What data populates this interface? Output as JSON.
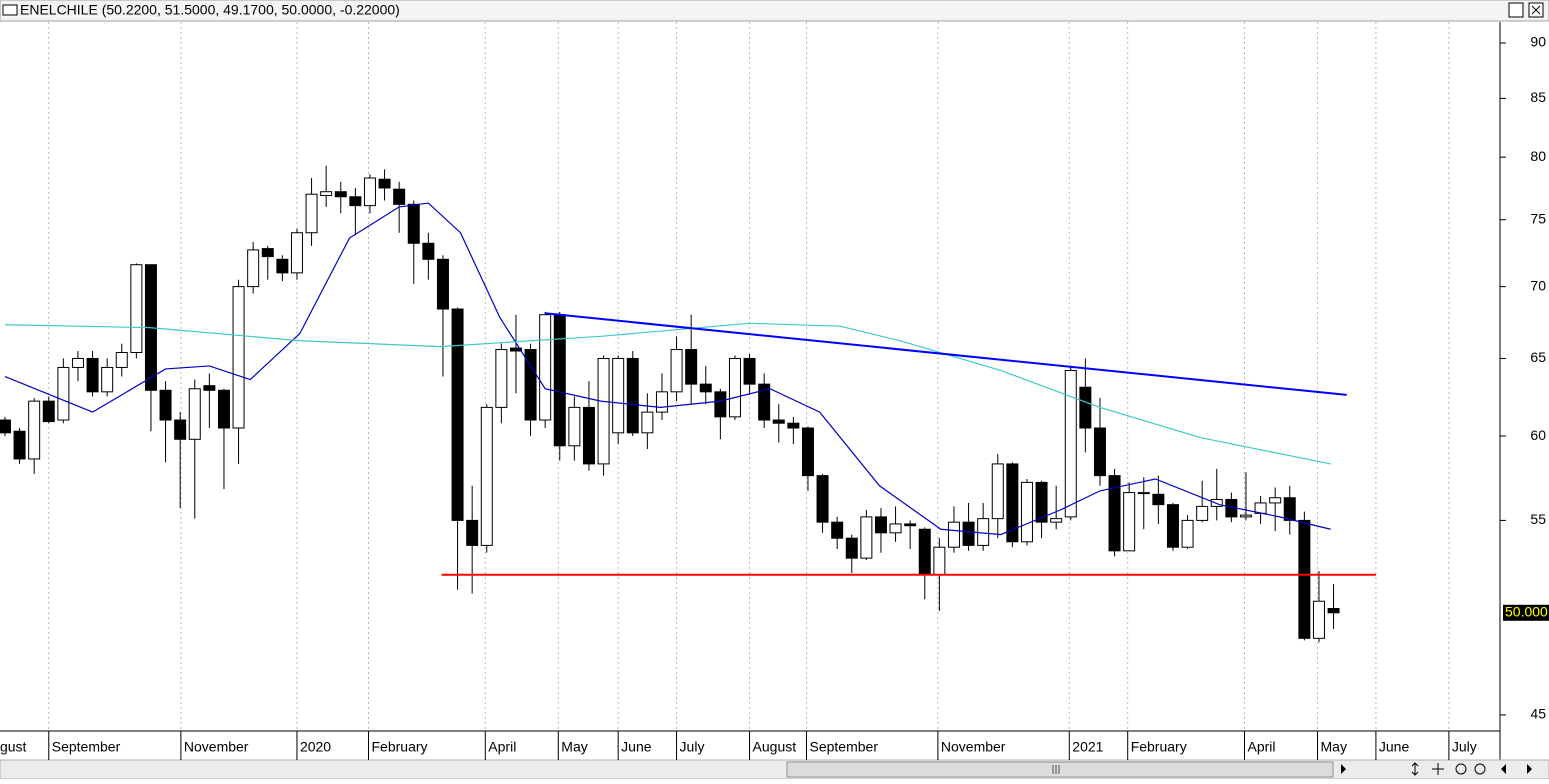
{
  "chart_data": {
    "type": "candlestick",
    "title": "ENELCHILE (50.2200, 51.5000, 49.1700, 50.0000, -0.22000)",
    "log_scale": true,
    "grid": true,
    "up_color": "#ffffff",
    "down_color": "#000000",
    "ylim": [
      44.26,
      91.97
    ],
    "yticks": [
      45,
      55,
      60,
      65,
      70,
      75,
      80,
      85,
      90
    ],
    "xlim": [
      -0.34,
      102.4
    ],
    "xticks": [
      {
        "value": -0.55,
        "label": "gust"
      },
      {
        "value": 3.0,
        "label": "September"
      },
      {
        "value": 12.05,
        "label": "November"
      },
      {
        "value": 20.0,
        "label": "2020"
      },
      {
        "value": 24.9,
        "label": "February"
      },
      {
        "value": 32.9,
        "label": "April"
      },
      {
        "value": 37.9,
        "label": "May"
      },
      {
        "value": 42.0,
        "label": "June"
      },
      {
        "value": 46.0,
        "label": "July"
      },
      {
        "value": 51.0,
        "label": "August"
      },
      {
        "value": 54.9,
        "label": "September"
      },
      {
        "value": 63.9,
        "label": "November"
      },
      {
        "value": 72.9,
        "label": "2021"
      },
      {
        "value": 76.9,
        "label": "February"
      },
      {
        "value": 84.9,
        "label": "April"
      },
      {
        "value": 89.9,
        "label": "May"
      },
      {
        "value": 93.9,
        "label": "June"
      },
      {
        "value": 98.9,
        "label": "July"
      }
    ],
    "open": [
      61,
      60.3,
      58.6,
      62.2,
      61,
      64.4,
      65,
      62.8,
      64.4,
      65.4,
      71.6,
      62.9,
      61,
      59.8,
      63.2,
      62.9,
      60.5,
      70,
      72.8,
      72,
      71,
      74,
      76.9,
      77.2,
      76.8,
      76.1,
      78.2,
      77.4,
      76.2,
      73.2,
      72,
      68.4,
      55,
      53.6,
      61.8,
      65.7,
      65.6,
      61,
      68,
      59.4,
      61.8,
      58.3,
      60.2,
      65,
      60.2,
      61.5,
      62.8,
      65.6,
      63.3,
      62.8,
      61.2,
      65,
      63.3,
      61,
      60.8,
      60.5,
      57.6,
      54.9,
      54,
      52.9,
      55.2,
      54.3,
      54.8,
      54.5,
      52,
      53.5,
      54.9,
      53.6,
      55.1,
      58.3,
      53.8,
      57.2,
      54.9,
      55.2,
      63.1,
      60.5,
      57.6,
      53.3,
      56.6,
      56.5,
      55.9,
      53.5,
      55,
      55.8,
      56.2,
      55.2,
      55.4,
      56,
      56.3,
      55,
      48.7,
      50.22
    ],
    "high": [
      61.2,
      60.5,
      62.4,
      62.5,
      65,
      65.5,
      65.5,
      65,
      66,
      71.7,
      71.6,
      63.5,
      61.5,
      63.6,
      64,
      63,
      70.5,
      73.3,
      73,
      72.3,
      74.3,
      78.3,
      79.3,
      78,
      77.5,
      78.6,
      79,
      78,
      76.5,
      74,
      72.3,
      68.5,
      57,
      62,
      66,
      68,
      66,
      68.2,
      68.2,
      62.5,
      63.5,
      65.2,
      65.2,
      65.5,
      62.7,
      64,
      66.5,
      68,
      64.5,
      63,
      65.2,
      65.3,
      64,
      62,
      61.2,
      60.6,
      57.7,
      55.2,
      54.2,
      55.6,
      55.7,
      55.8,
      55,
      54.6,
      54,
      55.8,
      56,
      56,
      58.9,
      58.4,
      57.4,
      57.3,
      57,
      64.5,
      65,
      62.4,
      58,
      57.2,
      57.5,
      57.6,
      56,
      55.3,
      57.3,
      58,
      56.6,
      57.8,
      56.4,
      56.9,
      57,
      55.5,
      52.2,
      51.5
    ],
    "low": [
      60,
      58.3,
      57.7,
      60.8,
      60.8,
      63.5,
      62.5,
      62.5,
      63.8,
      65,
      60.3,
      58.4,
      55.7,
      55.1,
      60.5,
      56.8,
      58.3,
      69.5,
      70.5,
      70.4,
      70.5,
      73,
      76,
      75.5,
      73.8,
      75.5,
      76.5,
      74,
      70.2,
      70.5,
      63.8,
      51.2,
      51,
      53.2,
      60.8,
      62.7,
      60,
      60.5,
      58.5,
      58.5,
      57.9,
      57.6,
      59.5,
      60,
      59.2,
      61,
      62.2,
      62,
      62,
      59.8,
      61,
      62.6,
      60.5,
      59.6,
      59.5,
      56.7,
      54.3,
      53.4,
      52.1,
      52.8,
      53.2,
      53.8,
      53.4,
      50.7,
      50.1,
      53.2,
      53.3,
      53.3,
      54,
      53.5,
      53.6,
      54,
      54.5,
      55,
      59,
      57,
      53,
      53.3,
      54.5,
      54.8,
      53.3,
      53.4,
      54.9,
      55,
      54.9,
      55,
      54.8,
      54.4,
      54.2,
      48.6,
      48.5,
      49.17
    ],
    "close": [
      60.2,
      58.6,
      62.2,
      60.9,
      64.4,
      65,
      62.8,
      64.4,
      65.4,
      71.6,
      62.9,
      61,
      59.8,
      63,
      62.9,
      60.5,
      70,
      72.7,
      72.2,
      71,
      74,
      77,
      77.2,
      76.8,
      76.1,
      78.3,
      77.5,
      76.2,
      73.2,
      72,
      68.4,
      55,
      53.6,
      61.8,
      65.6,
      65.5,
      61,
      68,
      59.4,
      61.8,
      58.3,
      65,
      65,
      60.2,
      61.5,
      62.8,
      65.6,
      63.3,
      62.8,
      61.2,
      65,
      63.3,
      61,
      60.8,
      60.5,
      57.6,
      54.9,
      54,
      52.9,
      55.2,
      54.3,
      54.8,
      54.7,
      52,
      53.5,
      54.9,
      53.6,
      55.1,
      58.3,
      53.8,
      57.2,
      54.9,
      55.1,
      64.2,
      60.5,
      57.6,
      53.3,
      56.6,
      56.6,
      55.9,
      53.5,
      55,
      55.8,
      56.2,
      55.2,
      55.3,
      56,
      56.3,
      55,
      48.7,
      50.6,
      50
    ],
    "last_value": {
      "value": 50,
      "label": "50.000"
    },
    "overlays": [
      {
        "color": "#0000c0",
        "x": [
          0,
          6,
          11,
          14,
          16.8,
          20.2,
          23.6,
          27,
          29,
          31.2,
          33.9,
          37,
          40.8,
          44.9,
          49,
          52.4,
          55.8,
          59.9,
          64.1,
          68.2,
          72.3,
          75,
          78.8,
          83.2,
          87.3,
          90.8
        ],
        "values": [
          63.8,
          61.5,
          64.3,
          64.5,
          63.6,
          66.7,
          73.6,
          76,
          76.3,
          74,
          67.8,
          63,
          62.2,
          61.8,
          62.2,
          63,
          61.5,
          57,
          54.5,
          54.2,
          55.6,
          56.7,
          57.4,
          55.9,
          55.2,
          54.5
        ]
      },
      {
        "color": "#40c8c8",
        "x": [
          0,
          9.9,
          20.2,
          29.8,
          40.8,
          51,
          57.2,
          61.3,
          68.2,
          75,
          81.9,
          90.8
        ],
        "values": [
          67.3,
          67.1,
          66.2,
          65.8,
          66.5,
          67.4,
          67.2,
          66.2,
          64.2,
          61.8,
          59.9,
          58.3
        ]
      }
    ],
    "trendlines": [
      {
        "color": "#0000ff",
        "x": [
          37,
          91.9
        ],
        "values": [
          68.1,
          62.6
        ]
      },
      {
        "color": "#ff0000",
        "x": [
          29.9,
          93.9
        ],
        "values": [
          52,
          52
        ]
      }
    ]
  }
}
